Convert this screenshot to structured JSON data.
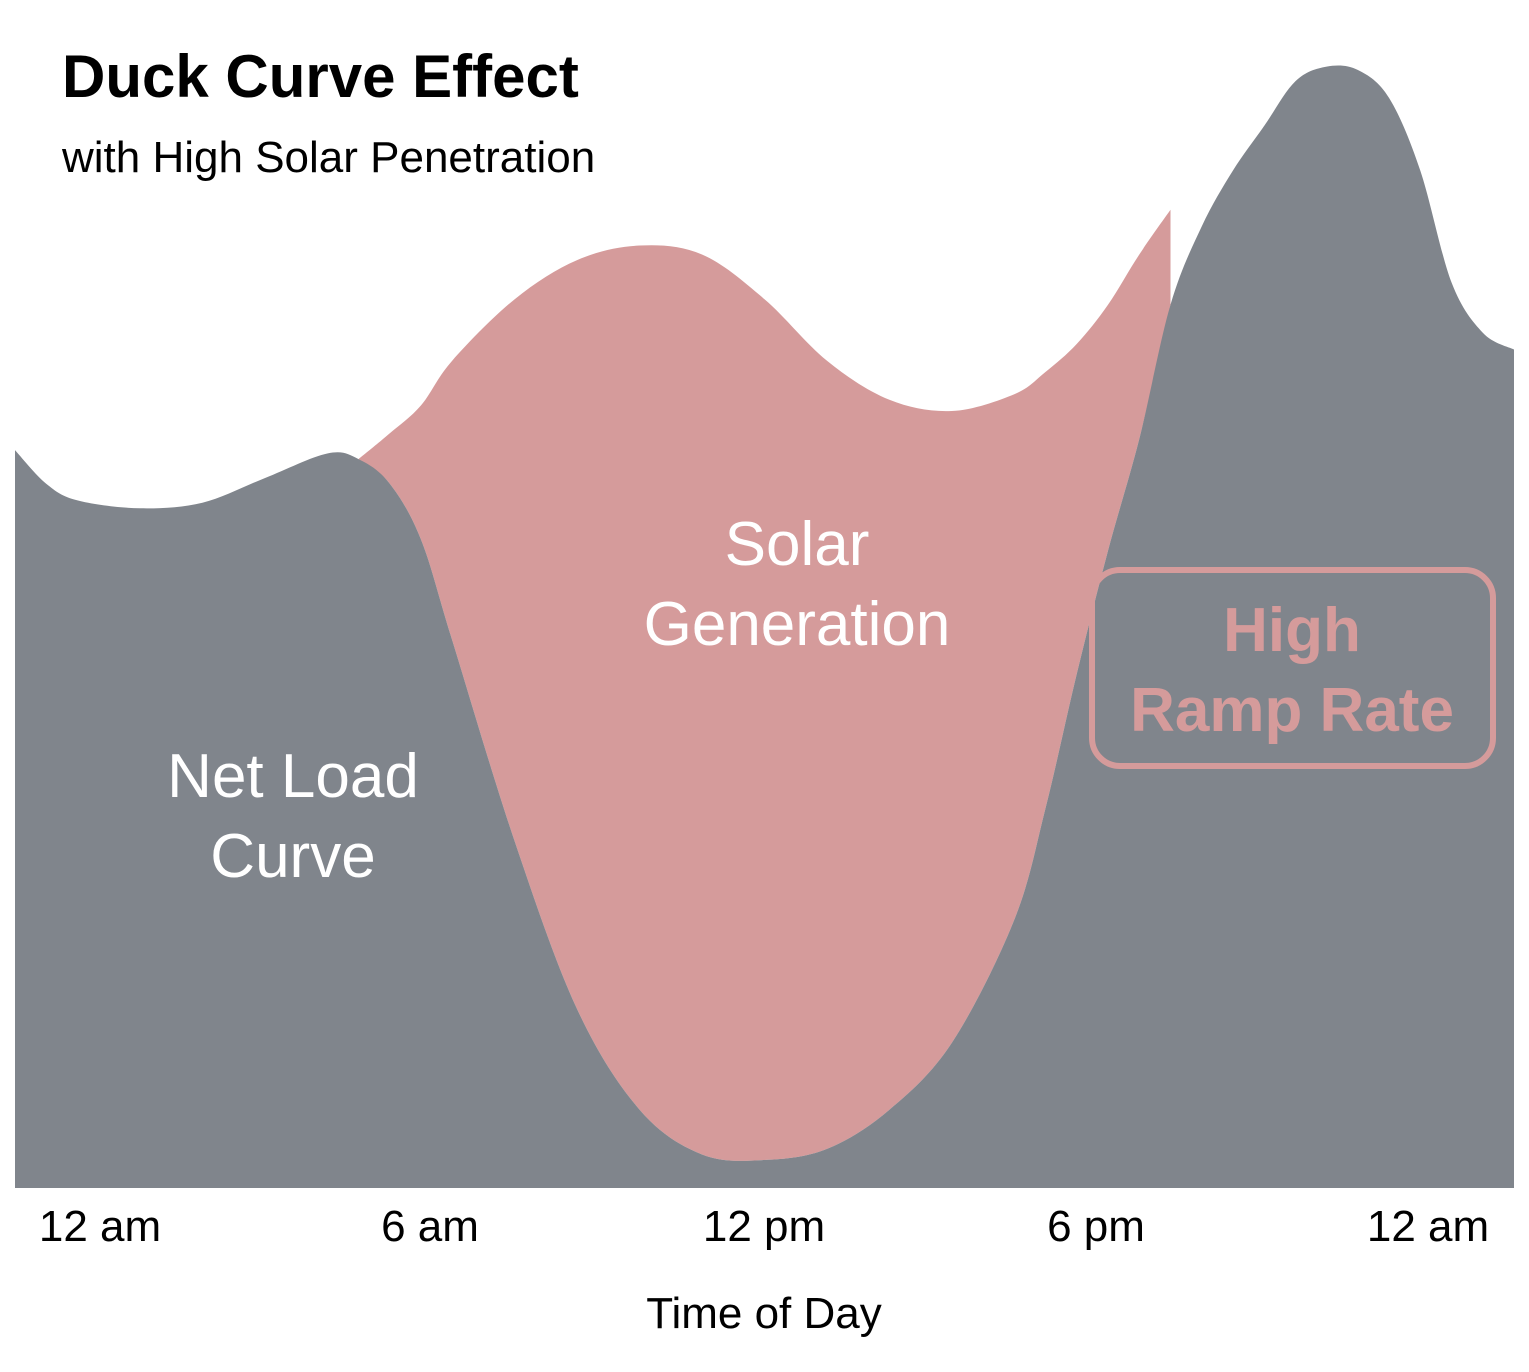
{
  "chart_data": {
    "type": "area",
    "title": "Duck Curve Effect",
    "subtitle": "with High Solar Penetration",
    "xlabel": "Time of Day",
    "ylabel": "",
    "x_ticks": [
      "12 am",
      "6 am",
      "12 pm",
      "6 pm",
      "12 am"
    ],
    "xlim": [
      0,
      24
    ],
    "ylim": [
      0,
      100
    ],
    "grid": false,
    "legend": "none",
    "series": [
      {
        "name": "Net Load Curve",
        "color": "#80858c",
        "x": [
          0,
          0.5,
          1,
          2,
          3,
          4,
          5,
          5.5,
          6,
          6.5,
          7,
          8,
          9,
          10,
          11,
          12,
          13,
          14,
          15,
          16,
          16.5,
          17,
          17.5,
          18,
          18.5,
          19,
          19.5,
          20,
          20.5,
          21,
          21.5,
          22,
          22.5,
          23,
          23.5,
          24
        ],
        "y": [
          66,
          63,
          61.5,
          60.8,
          61.3,
          63.5,
          65.7,
          65.2,
          63,
          58,
          49,
          31,
          16,
          7,
          3,
          2.5,
          3.5,
          7,
          13,
          24,
          34,
          46,
          57,
          67,
          79,
          86,
          91,
          95,
          99,
          100.3,
          100,
          97.5,
          91,
          81,
          76.5,
          75
        ]
      },
      {
        "name": "Solar Generation",
        "color": "#d59b9b",
        "x": [
          5.5,
          6,
          6.5,
          7,
          8,
          9,
          10,
          11,
          12,
          13,
          14,
          15,
          16,
          16.5,
          17,
          17.5,
          18,
          18.5
        ],
        "y": [
          65.2,
          67.5,
          70,
          74,
          79.5,
          83,
          84.3,
          83.5,
          79.5,
          74,
          70.5,
          69.5,
          71,
          73,
          75.5,
          79,
          83.5,
          87.5
        ]
      }
    ],
    "annotations": [
      {
        "text": "Net Load Curve",
        "lines": [
          "Net Load",
          "Curve"
        ]
      },
      {
        "text": "Solar Generation",
        "lines": [
          "Solar",
          "Generation"
        ]
      },
      {
        "text": "High Ramp Rate",
        "lines": [
          "High",
          "Ramp Rate"
        ],
        "color": "#d59b9b",
        "boxed": true
      }
    ]
  }
}
